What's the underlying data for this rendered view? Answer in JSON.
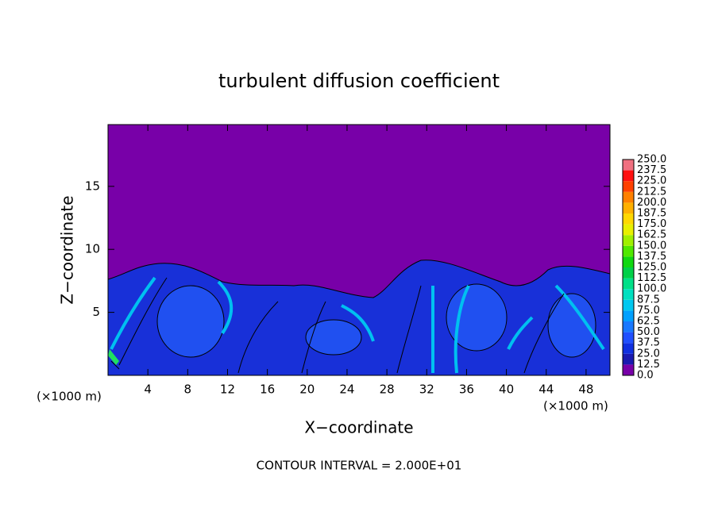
{
  "chart_data": {
    "type": "contour",
    "title": "turbulent diffusion coefficient",
    "xlabel": "X−coordinate",
    "ylabel": "Z−coordinate",
    "xlabel_unit": "(×1000 m)",
    "ylabel_unit": "(×1000 m)",
    "footer": "CONTOUR INTERVAL = 2.000E+01",
    "xlim": [
      0,
      50.4
    ],
    "xticks": [
      4,
      8,
      12,
      16,
      20,
      24,
      28,
      32,
      36,
      40,
      44,
      48
    ],
    "ylim": [
      0,
      19.9
    ],
    "yticks": [
      5,
      10,
      15
    ],
    "colorbar": {
      "levels": [
        {
          "value": 0,
          "label": "0.0"
        },
        {
          "value": 12.5,
          "label": "12.5"
        },
        {
          "value": 25,
          "label": "25.0"
        },
        {
          "value": 37.5,
          "label": "37.5"
        },
        {
          "value": 50,
          "label": "50.0"
        },
        {
          "value": 62.5,
          "label": "62.5"
        },
        {
          "value": 75,
          "label": "75.0"
        },
        {
          "value": 87.5,
          "label": "87.5"
        },
        {
          "value": 100,
          "label": "100.0"
        },
        {
          "value": 112.5,
          "label": "112.5"
        },
        {
          "value": 125,
          "label": "125.0"
        },
        {
          "value": 137.5,
          "label": "137.5"
        },
        {
          "value": 150,
          "label": "150.0"
        },
        {
          "value": 162.5,
          "label": "162.5"
        },
        {
          "value": 175,
          "label": "175.0"
        },
        {
          "value": 187.5,
          "label": "187.5"
        },
        {
          "value": 200,
          "label": "200.0"
        },
        {
          "value": 212.5,
          "label": "212.5"
        },
        {
          "value": 225,
          "label": "225.0"
        },
        {
          "value": 237.5,
          "label": "237.5"
        },
        {
          "value": 250,
          "label": "250.0"
        }
      ],
      "colors": [
        "#7800a8",
        "#1a1ab0",
        "#1030e0",
        "#2050ff",
        "#1878ff",
        "#00a0ff",
        "#00c8f0",
        "#00e0c0",
        "#00e088",
        "#00d048",
        "#10d810",
        "#50e800",
        "#a0f000",
        "#e8f000",
        "#ffd800",
        "#ffb000",
        "#ff8000",
        "#ff4000",
        "#ff1010",
        "#f07080"
      ]
    }
  }
}
